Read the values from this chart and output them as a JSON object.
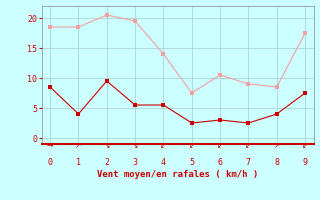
{
  "x": [
    0,
    1,
    2,
    3,
    4,
    5,
    6,
    7,
    8,
    9
  ],
  "y_rafales": [
    18.5,
    18.5,
    20.5,
    19.5,
    14.0,
    7.5,
    10.5,
    9.0,
    8.5,
    17.5
  ],
  "y_moyen": [
    8.5,
    4.0,
    9.5,
    5.5,
    5.5,
    2.5,
    3.0,
    2.5,
    4.0,
    7.5
  ],
  "color_rafales": "#F4A0A0",
  "color_moyen": "#CC0000",
  "bg_color": "#CCFFFF",
  "xlabel": "Vent moyen/en rafales ( km/h )",
  "xlabel_color": "#CC0000",
  "grid_color": "#AACCCC",
  "tick_color": "#CC0000",
  "spine_color": "#888888",
  "xspine_color": "#CC0000",
  "ylim": [
    -1,
    22
  ],
  "xlim": [
    -0.3,
    9.3
  ],
  "yticks": [
    0,
    5,
    10,
    15,
    20
  ],
  "xticks": [
    0,
    1,
    2,
    3,
    4,
    5,
    6,
    7,
    8,
    9
  ],
  "wind_arrows": [
    "→",
    "↗",
    "↘",
    "↘",
    "↙",
    "↙",
    "↙",
    "↙",
    "↗",
    "↙"
  ],
  "marker_size": 2.5
}
